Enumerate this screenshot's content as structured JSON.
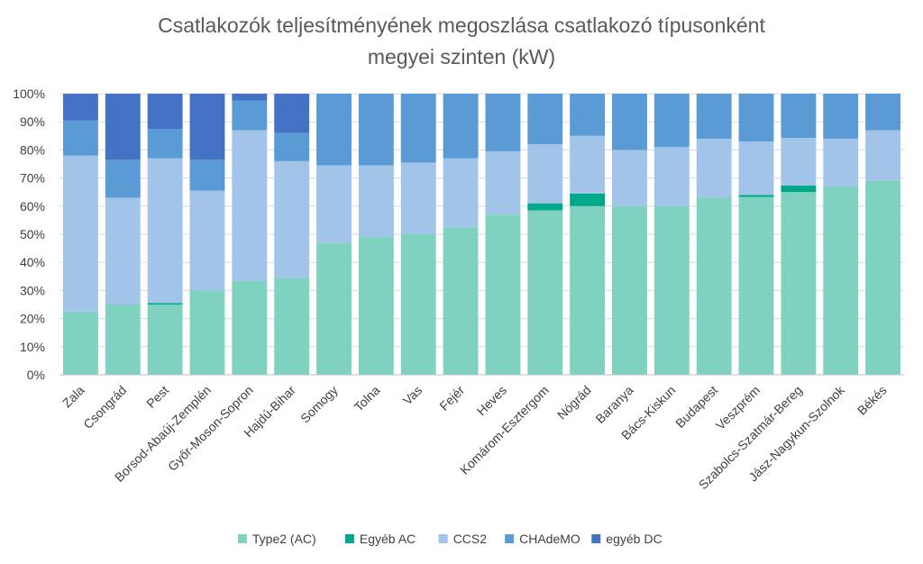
{
  "chart_data": {
    "type": "bar",
    "stacked": true,
    "percent_stacked": true,
    "title": "Csatlakozók teljesítményének megoszlása csatlakozó típusonként megyei szinten (kW)",
    "title_lines": [
      "Csatlakozók teljesítményének megoszlása csatlakozó típusonként",
      "megyei szinten (kW)"
    ],
    "categories": [
      "Zala",
      "Csongrád",
      "Pest",
      "Borsod-Abaúj-Zemplén",
      "Győr-Moson-Sopron",
      "Hajdú-Bihar",
      "Somogy",
      "Tolna",
      "Vas",
      "Fejér",
      "Heves",
      "Komárom-Esztergom",
      "Nógrád",
      "Baranya",
      "Bács-Kiskun",
      "Budapest",
      "Veszprém",
      "Szabolcs-Szatmár-Bereg",
      "Jász-Nagykun-Szolnok",
      "Békés"
    ],
    "series": [
      {
        "name": "Type2 (AC)",
        "color": "#7fd1c0",
        "values": [
          22.5,
          25,
          25,
          30,
          33.5,
          34.5,
          47,
          49,
          50,
          52.5,
          57,
          58.5,
          60,
          60,
          60,
          63,
          63.3,
          65,
          67,
          69
        ]
      },
      {
        "name": "Egyéb AC",
        "color": "#00a88a",
        "values": [
          0,
          0,
          0.5,
          0,
          0,
          0,
          0,
          0,
          0,
          0,
          0,
          2.5,
          4.5,
          0,
          0,
          0,
          0.7,
          2.3,
          0,
          0
        ]
      },
      {
        "name": "CCS2",
        "color": "#a2c4e9",
        "values": [
          55.5,
          38,
          51.5,
          35.5,
          53.5,
          41.5,
          27.5,
          25.5,
          25.5,
          24.5,
          22.5,
          21,
          20.5,
          20,
          21,
          21,
          19,
          17,
          17,
          18
        ]
      },
      {
        "name": "CHAdeMO",
        "color": "#5b9bd5",
        "values": [
          12.5,
          13.5,
          10.5,
          11,
          10.5,
          10,
          25.5,
          25.5,
          24.5,
          23,
          20.5,
          18,
          15,
          20,
          19,
          16,
          17,
          15.7,
          16,
          13
        ]
      },
      {
        "name": "egyéb DC",
        "color": "#4472c4",
        "values": [
          9.5,
          23.5,
          12.5,
          23.5,
          2.5,
          14,
          0,
          0,
          0,
          0,
          0,
          0,
          0,
          0,
          0,
          0,
          0,
          0,
          0,
          0
        ]
      }
    ],
    "y_ticks": [
      "0%",
      "10%",
      "20%",
      "30%",
      "40%",
      "50%",
      "60%",
      "70%",
      "80%",
      "90%",
      "100%"
    ],
    "ylim": [
      0,
      100
    ],
    "xlabel": "",
    "ylabel": "",
    "grid": true,
    "legend_position": "bottom"
  }
}
